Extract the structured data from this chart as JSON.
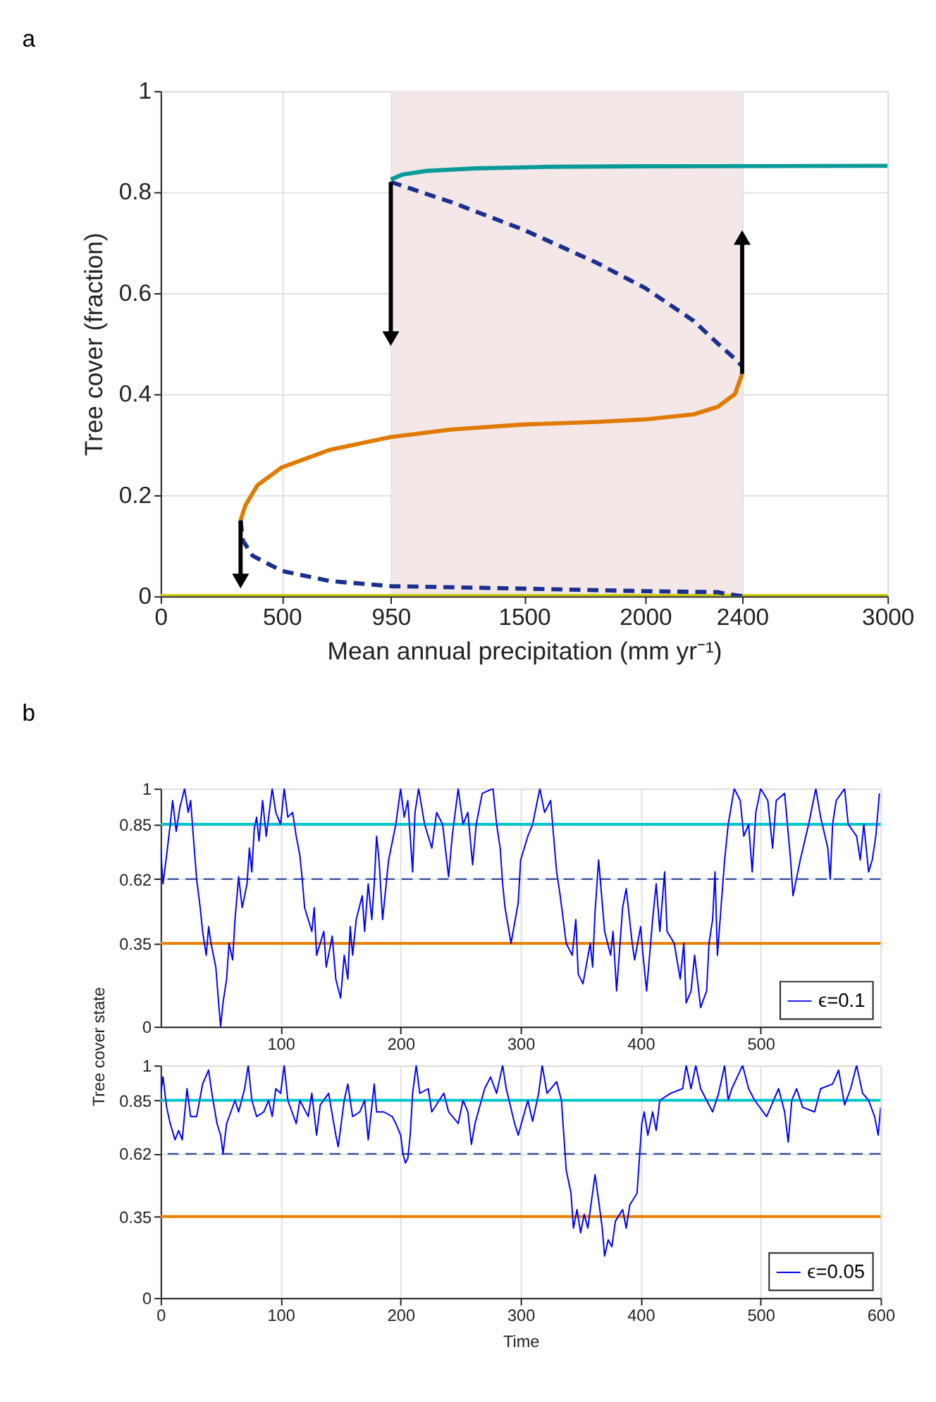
{
  "chart_data": [
    {
      "type": "line",
      "annotations": [
        "a"
      ],
      "xlabel": "Mean annual precipitation (mm yr⁻¹)",
      "ylabel": "Tree cover (fraction)",
      "xlim": [
        0,
        3000
      ],
      "ylim": [
        0,
        1
      ],
      "xticks": [
        0,
        500,
        950,
        1500,
        2000,
        2400,
        3000
      ],
      "yticks": [
        0,
        0.2,
        0.4,
        0.6,
        0.8,
        1
      ],
      "grid": true,
      "legend": false,
      "bands": [
        {
          "axis": "x",
          "from": 950,
          "to": 2400,
          "color": "#f3e7e7"
        }
      ],
      "series": [
        {
          "color": "#c8c800",
          "x": [
            0,
            3000
          ],
          "values": [
            0,
            0
          ]
        },
        {
          "color": "#e07b00",
          "x": [
            330,
            350,
            400,
            500,
            700,
            950,
            1200,
            1500,
            1800,
            2000,
            2200,
            2300,
            2370,
            2400
          ],
          "values": [
            0.15,
            0.18,
            0.22,
            0.255,
            0.29,
            0.315,
            0.33,
            0.34,
            0.345,
            0.35,
            0.36,
            0.375,
            0.4,
            0.44
          ]
        },
        {
          "color": "#1a2f8f",
          "line_style": "dashed",
          "x": [
            330,
            340,
            380,
            500,
            700,
            950,
            1500,
            2000,
            2300,
            2330,
            2400
          ],
          "values": [
            0.15,
            0.11,
            0.08,
            0.05,
            0.03,
            0.02,
            0.015,
            0.01,
            0.008,
            0.005,
            0
          ]
        },
        {
          "color": "#1a2f8f",
          "line_style": "dashed",
          "x": [
            950,
            1200,
            1500,
            1800,
            2000,
            2200,
            2300,
            2370,
            2400
          ],
          "values": [
            0.82,
            0.78,
            0.725,
            0.66,
            0.61,
            0.545,
            0.5,
            0.47,
            0.455
          ]
        },
        {
          "color": "#0a9a9a",
          "x": [
            950,
            1000,
            1100,
            1300,
            1600,
            2000,
            3000
          ],
          "values": [
            0.825,
            0.835,
            0.842,
            0.847,
            0.85,
            0.851,
            0.852
          ]
        },
        {
          "color": "#000000",
          "marker": "triangle",
          "x": [
            330,
            330
          ],
          "values": [
            0.15,
            0.03
          ]
        },
        {
          "color": "#000000",
          "marker": "triangle",
          "x": [
            950,
            950
          ],
          "values": [
            0.82,
            0.51
          ]
        },
        {
          "color": "#000000",
          "marker": "triangle",
          "x": [
            2400,
            2400
          ],
          "values": [
            0.44,
            0.71
          ]
        }
      ]
    },
    {
      "type": "line",
      "annotations": [
        "b"
      ],
      "ylabel": "Tree cover state",
      "xlim": [
        0,
        600
      ],
      "ylim": [
        0,
        1
      ],
      "xticks": [
        100,
        200,
        300,
        400,
        500
      ],
      "yticks": [
        0,
        0.35,
        0.62,
        0.85,
        1
      ],
      "grid": true,
      "legend": "bottom right",
      "ref_lines": [
        {
          "axis": "y",
          "value": 0.85,
          "color": "#00c8c8"
        },
        {
          "axis": "y",
          "value": 0.62,
          "color": "#1a3a8f",
          "line_style": "dashed"
        },
        {
          "axis": "y",
          "value": 0.35,
          "color": "#e88000"
        }
      ],
      "series": [
        {
          "name": "ϵ=0.1",
          "color": "#0000ff",
          "x": [
            0,
            2,
            5,
            8,
            10,
            13,
            16,
            20,
            23,
            25,
            28,
            30,
            33,
            35,
            38,
            40,
            42,
            46,
            48,
            50,
            52,
            55,
            57,
            60,
            62,
            65,
            68,
            72,
            74,
            76,
            78,
            80,
            82,
            85,
            88,
            93,
            96,
            100,
            103,
            106,
            110,
            113,
            116,
            118,
            120,
            126,
            128,
            130,
            136,
            138,
            143,
            146,
            150,
            153,
            156,
            158,
            160,
            163,
            168,
            170,
            173,
            176,
            178,
            180,
            182,
            185,
            190,
            196,
            200,
            203,
            206,
            210,
            212,
            215,
            220,
            226,
            230,
            235,
            240,
            243,
            248,
            252,
            256,
            260,
            263,
            268,
            277,
            280,
            283,
            285,
            287,
            292,
            298,
            300,
            306,
            310,
            316,
            320,
            325,
            330,
            333,
            338,
            343,
            346,
            348,
            352,
            358,
            360,
            362,
            365,
            370,
            375,
            377,
            380,
            385,
            388,
            393,
            395,
            400,
            402,
            405,
            410,
            413,
            416,
            420,
            422,
            428,
            433,
            436,
            438,
            442,
            445,
            450,
            455,
            457,
            460,
            462,
            464,
            467,
            470,
            473,
            478,
            483,
            486,
            490,
            493,
            496,
            500,
            506,
            510,
            513,
            520,
            525,
            527,
            533,
            540,
            546,
            550,
            556,
            558,
            560,
            563,
            570,
            573,
            580,
            583,
            586,
            590,
            593,
            596,
            599
          ],
          "values": [
            0.75,
            0.6,
            0.72,
            0.85,
            0.95,
            0.82,
            0.92,
            1.0,
            0.9,
            0.95,
            0.75,
            0.62,
            0.5,
            0.4,
            0.3,
            0.42,
            0.35,
            0.25,
            0.12,
            0.0,
            0.1,
            0.2,
            0.35,
            0.28,
            0.45,
            0.63,
            0.5,
            0.6,
            0.75,
            0.65,
            0.83,
            0.88,
            0.78,
            0.95,
            0.8,
            1.0,
            0.9,
            0.85,
            1.0,
            0.88,
            0.9,
            0.8,
            0.72,
            0.62,
            0.5,
            0.4,
            0.5,
            0.3,
            0.4,
            0.25,
            0.38,
            0.2,
            0.12,
            0.3,
            0.2,
            0.42,
            0.3,
            0.45,
            0.55,
            0.4,
            0.6,
            0.45,
            0.6,
            0.8,
            0.7,
            0.45,
            0.7,
            0.85,
            1.0,
            0.88,
            0.95,
            0.65,
            0.9,
            1.0,
            0.85,
            0.75,
            0.9,
            0.85,
            0.63,
            0.8,
            1.0,
            0.85,
            0.9,
            0.68,
            0.85,
            0.98,
            1.0,
            0.85,
            0.75,
            0.6,
            0.5,
            0.35,
            0.52,
            0.7,
            0.8,
            0.85,
            1.0,
            0.9,
            0.95,
            0.65,
            0.55,
            0.35,
            0.3,
            0.45,
            0.22,
            0.18,
            0.35,
            0.25,
            0.48,
            0.7,
            0.4,
            0.3,
            0.4,
            0.15,
            0.5,
            0.58,
            0.35,
            0.28,
            0.42,
            0.3,
            0.15,
            0.45,
            0.6,
            0.4,
            0.65,
            0.4,
            0.35,
            0.2,
            0.35,
            0.1,
            0.15,
            0.3,
            0.08,
            0.15,
            0.35,
            0.45,
            0.65,
            0.3,
            0.5,
            0.7,
            0.85,
            1.0,
            0.95,
            0.8,
            0.85,
            0.65,
            0.9,
            1.0,
            0.95,
            0.75,
            0.95,
            0.98,
            0.7,
            0.55,
            0.7,
            0.85,
            1.0,
            0.88,
            0.75,
            0.62,
            0.85,
            0.95,
            1.0,
            0.85,
            0.8,
            0.7,
            0.85,
            0.65,
            0.7,
            0.8,
            0.98
          ]
        }
      ]
    },
    {
      "type": "line",
      "xlabel": "Time",
      "xlim": [
        0,
        600
      ],
      "ylim": [
        0,
        1
      ],
      "xticks": [
        0,
        100,
        200,
        300,
        400,
        500,
        600
      ],
      "yticks": [
        0,
        0.35,
        0.62,
        0.85,
        1
      ],
      "grid": true,
      "legend": "bottom right",
      "ref_lines": [
        {
          "axis": "y",
          "value": 0.85,
          "color": "#00c8c8"
        },
        {
          "axis": "y",
          "value": 0.62,
          "color": "#1a3a8f",
          "line_style": "dashed"
        },
        {
          "axis": "y",
          "value": 0.35,
          "color": "#e88000"
        }
      ],
      "series": [
        {
          "name": "ϵ=0.05",
          "color": "#0000ff",
          "x": [
            0,
            2,
            5,
            8,
            12,
            15,
            18,
            22,
            25,
            30,
            35,
            40,
            43,
            47,
            50,
            52,
            55,
            62,
            65,
            70,
            73,
            76,
            80,
            86,
            90,
            93,
            96,
            100,
            103,
            106,
            113,
            116,
            123,
            126,
            130,
            133,
            140,
            146,
            148,
            153,
            156,
            160,
            166,
            170,
            173,
            178,
            180,
            186,
            193,
            196,
            200,
            202,
            204,
            206,
            208,
            210,
            213,
            216,
            223,
            226,
            236,
            240,
            248,
            252,
            256,
            259,
            262,
            270,
            275,
            280,
            285,
            288,
            295,
            298,
            306,
            310,
            315,
            318,
            322,
            330,
            334,
            336,
            338,
            342,
            344,
            347,
            350,
            353,
            356,
            362,
            365,
            368,
            370,
            373,
            376,
            379,
            385,
            388,
            391,
            397,
            399,
            401,
            403,
            406,
            410,
            413,
            416,
            425,
            435,
            438,
            442,
            446,
            450,
            460,
            465,
            470,
            473,
            476,
            485,
            490,
            495,
            505,
            515,
            520,
            523,
            526,
            530,
            535,
            545,
            550,
            560,
            565,
            570,
            575,
            580,
            585,
            590,
            595,
            598,
            600
          ],
          "values": [
            0.88,
            0.95,
            0.82,
            0.75,
            0.68,
            0.72,
            0.68,
            0.9,
            0.78,
            0.78,
            0.92,
            0.98,
            0.87,
            0.75,
            0.7,
            0.62,
            0.75,
            0.85,
            0.8,
            0.9,
            1.0,
            0.85,
            0.78,
            0.8,
            0.85,
            0.78,
            0.9,
            0.88,
            1.0,
            0.85,
            0.75,
            0.85,
            0.78,
            0.88,
            0.7,
            0.83,
            0.88,
            0.7,
            0.65,
            0.85,
            0.92,
            0.78,
            0.8,
            0.85,
            0.68,
            0.92,
            0.8,
            0.8,
            0.78,
            0.75,
            0.7,
            0.62,
            0.58,
            0.6,
            0.7,
            0.88,
            1.0,
            0.88,
            0.9,
            0.8,
            0.88,
            0.8,
            0.75,
            0.85,
            0.8,
            0.66,
            0.75,
            0.9,
            0.95,
            0.88,
            1.0,
            0.9,
            0.75,
            0.7,
            0.85,
            0.76,
            0.88,
            1.0,
            0.88,
            0.93,
            0.85,
            0.7,
            0.55,
            0.45,
            0.3,
            0.38,
            0.28,
            0.36,
            0.3,
            0.53,
            0.42,
            0.3,
            0.18,
            0.25,
            0.22,
            0.33,
            0.38,
            0.3,
            0.4,
            0.45,
            0.6,
            0.75,
            0.8,
            0.7,
            0.8,
            0.72,
            0.85,
            0.88,
            0.9,
            1.0,
            0.9,
            1.0,
            0.9,
            0.8,
            0.88,
            1.0,
            0.85,
            0.9,
            1.0,
            0.9,
            0.85,
            0.78,
            0.9,
            0.8,
            0.67,
            0.85,
            0.9,
            0.82,
            0.8,
            0.9,
            0.92,
            0.98,
            0.83,
            0.9,
            1.0,
            0.88,
            0.85,
            0.78,
            0.7,
            0.82
          ]
        }
      ]
    }
  ]
}
